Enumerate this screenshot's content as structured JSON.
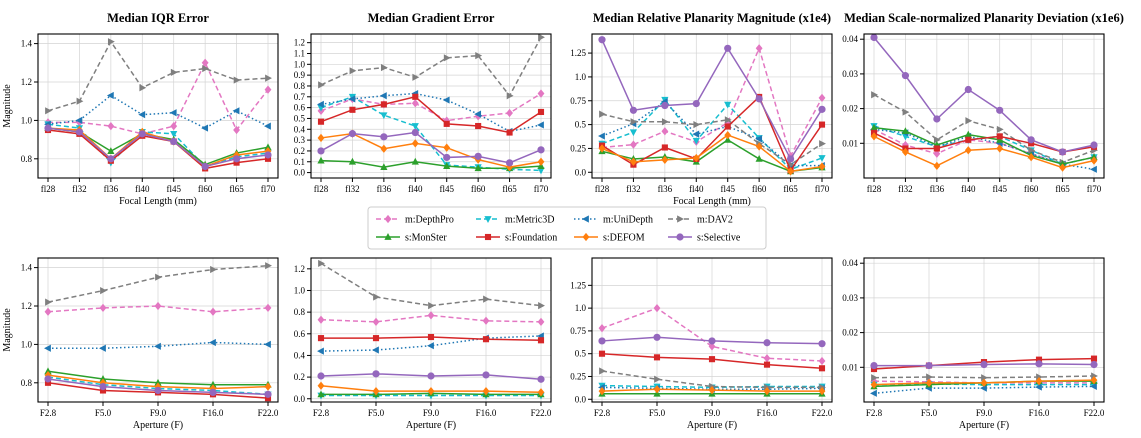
{
  "figure_note": "",
  "chart_data": {
    "type": "line",
    "titles": [
      "Median IQR Error",
      "Median Gradient Error",
      "Median Relative Planarity Magnitude (x1e4)",
      "Median Scale-normalized Planarity Deviation (x1e6)"
    ],
    "ylabel": "Magnitude",
    "legend": {
      "placement": "center",
      "ncol": 4
    },
    "series": [
      {
        "name": "m:DepthPro",
        "color": "#e377c2",
        "marker": "diamond",
        "dash": "dashed"
      },
      {
        "name": "m:Metric3D",
        "color": "#17becf",
        "marker": "triangle-down",
        "dash": "dashed"
      },
      {
        "name": "m:UniDepth",
        "color": "#1f77b4",
        "marker": "triangle-left",
        "dash": "dotted"
      },
      {
        "name": "m:DAV2",
        "color": "#7f7f7f",
        "marker": "triangle-right",
        "dash": "dashed"
      },
      {
        "name": "s:MonSter",
        "color": "#2ca02c",
        "marker": "triangle-up",
        "dash": "solid"
      },
      {
        "name": "s:Foundation",
        "color": "#d62728",
        "marker": "square",
        "dash": "solid"
      },
      {
        "name": "s:DEFOM",
        "color": "#ff7f0e",
        "marker": "diamond",
        "dash": "solid"
      },
      {
        "name": "s:Selective",
        "color": "#9467bd",
        "marker": "circle",
        "dash": "solid"
      }
    ],
    "rows": [
      {
        "xlabel": "Focal Length (mm)",
        "categories": [
          "fl28",
          "fl32",
          "fl36",
          "fl40",
          "fl45",
          "fl60",
          "fl65",
          "fl70"
        ],
        "panels": [
          {
            "ylim": [
              0.7,
              1.45
            ],
            "yticks": [
              0.8,
              1.0,
              1.2,
              1.4
            ],
            "values": [
              [
                0.99,
                0.99,
                0.97,
                0.93,
                0.97,
                1.3,
                0.95,
                1.16
              ],
              [
                0.98,
                0.96,
                0.78,
                0.94,
                0.93,
                0.76,
                0.81,
                0.83
              ],
              [
                0.98,
                1.0,
                1.13,
                1.03,
                1.04,
                0.96,
                1.05,
                0.97
              ],
              [
                1.05,
                1.1,
                1.41,
                1.17,
                1.25,
                1.27,
                1.21,
                1.22
              ],
              [
                0.96,
                0.94,
                0.84,
                0.93,
                0.9,
                0.77,
                0.83,
                0.86
              ],
              [
                0.95,
                0.93,
                0.79,
                0.92,
                0.89,
                0.75,
                0.78,
                0.8
              ],
              [
                0.96,
                0.95,
                0.8,
                0.94,
                0.89,
                0.76,
                0.82,
                0.84
              ],
              [
                0.96,
                0.94,
                0.8,
                0.93,
                0.89,
                0.76,
                0.8,
                0.82
              ]
            ]
          },
          {
            "ylim": [
              -0.05,
              1.28
            ],
            "yticks": [
              0.0,
              0.1,
              0.2,
              0.3,
              0.4,
              0.5,
              0.6,
              0.7,
              0.8,
              0.9,
              1.0,
              1.1,
              1.2
            ],
            "values": [
              [
                0.57,
                0.68,
                0.63,
                0.64,
                0.48,
                0.52,
                0.55,
                0.73
              ],
              [
                0.6,
                0.7,
                0.53,
                0.43,
                0.07,
                0.05,
                0.03,
                0.02
              ],
              [
                0.63,
                0.68,
                0.71,
                0.73,
                0.67,
                0.54,
                0.38,
                0.44
              ],
              [
                0.81,
                0.94,
                0.97,
                0.88,
                1.06,
                1.08,
                0.71,
                1.25
              ],
              [
                0.11,
                0.1,
                0.05,
                0.1,
                0.06,
                0.04,
                0.04,
                0.06
              ],
              [
                0.47,
                0.58,
                0.63,
                0.7,
                0.45,
                0.43,
                0.37,
                0.56
              ],
              [
                0.32,
                0.36,
                0.22,
                0.27,
                0.23,
                0.12,
                0.05,
                0.1
              ],
              [
                0.2,
                0.36,
                0.33,
                0.37,
                0.14,
                0.15,
                0.09,
                0.21
              ]
            ]
          },
          {
            "ylim": [
              -0.06,
              1.45
            ],
            "yticks": [
              0.0,
              0.25,
              0.5,
              0.75,
              1.0,
              1.25
            ],
            "values": [
              [
                0.26,
                0.29,
                0.43,
                0.32,
                0.52,
                1.3,
                0.17,
                0.78
              ],
              [
                0.3,
                0.42,
                0.76,
                0.33,
                0.71,
                0.36,
                0.03,
                0.15
              ],
              [
                0.38,
                0.51,
                0.74,
                0.4,
                0.48,
                0.35,
                0.07,
                0.07
              ],
              [
                0.61,
                0.53,
                0.53,
                0.5,
                0.55,
                0.3,
                0.08,
                0.3
              ],
              [
                0.22,
                0.14,
                0.16,
                0.11,
                0.34,
                0.14,
                0.01,
                0.05
              ],
              [
                0.28,
                0.08,
                0.26,
                0.14,
                0.48,
                0.79,
                0.02,
                0.5
              ],
              [
                0.25,
                0.11,
                0.13,
                0.15,
                0.39,
                0.27,
                0.01,
                0.06
              ],
              [
                1.39,
                0.65,
                0.7,
                0.72,
                1.3,
                0.77,
                0.14,
                0.66
              ]
            ]
          },
          {
            "ylim": [
              0.0,
              0.0415
            ],
            "yticks": [
              0.01,
              0.02,
              0.03,
              0.04
            ],
            "values": [
              [
                0.014,
                0.0095,
                0.007,
                0.011,
                0.01,
                0.007,
                0.004,
                0.006
              ],
              [
                0.015,
                0.012,
                0.009,
                0.011,
                0.012,
                0.008,
                0.004,
                0.006
              ],
              [
                0.014,
                0.013,
                0.009,
                0.012,
                0.01,
                0.007,
                0.004,
                0.0025
              ],
              [
                0.024,
                0.019,
                0.011,
                0.0165,
                0.014,
                0.008,
                0.0045,
                0.008
              ],
              [
                0.0145,
                0.0135,
                0.0095,
                0.0125,
                0.011,
                0.0065,
                0.004,
                0.006
              ],
              [
                0.013,
                0.0085,
                0.0085,
                0.011,
                0.012,
                0.01,
                0.0075,
                0.009
              ],
              [
                0.012,
                0.0075,
                0.0035,
                0.008,
                0.0085,
                0.006,
                0.003,
                0.005
              ],
              [
                0.0405,
                0.0295,
                0.017,
                0.0255,
                0.0195,
                0.011,
                0.0075,
                0.0095
              ]
            ]
          }
        ]
      },
      {
        "xlabel": "Aperture (F)",
        "categories": [
          "F2.8",
          "F5.0",
          "F9.0",
          "F16.0",
          "F22.0"
        ],
        "panels": [
          {
            "ylim": [
              0.7,
              1.45
            ],
            "yticks": [
              0.8,
              1.0,
              1.2,
              1.4
            ],
            "values": [
              [
                1.17,
                1.19,
                1.2,
                1.17,
                1.19
              ],
              [
                0.83,
                0.79,
                0.77,
                0.76,
                0.74
              ],
              [
                0.98,
                0.98,
                0.99,
                1.01,
                1.0
              ],
              [
                1.22,
                1.28,
                1.35,
                1.39,
                1.41
              ],
              [
                0.86,
                0.82,
                0.8,
                0.79,
                0.79
              ],
              [
                0.8,
                0.76,
                0.75,
                0.74,
                0.72
              ],
              [
                0.84,
                0.8,
                0.78,
                0.77,
                0.78
              ],
              [
                0.82,
                0.78,
                0.76,
                0.75,
                0.74
              ]
            ]
          },
          {
            "ylim": [
              -0.03,
              1.3
            ],
            "yticks": [
              0.0,
              0.2,
              0.4,
              0.6,
              0.8,
              1.0,
              1.2
            ],
            "values": [
              [
                0.73,
                0.71,
                0.77,
                0.72,
                0.71
              ],
              [
                0.03,
                0.03,
                0.03,
                0.03,
                0.03
              ],
              [
                0.44,
                0.45,
                0.49,
                0.56,
                0.58
              ],
              [
                1.25,
                0.94,
                0.86,
                0.92,
                0.86
              ],
              [
                0.04,
                0.04,
                0.05,
                0.04,
                0.04
              ],
              [
                0.56,
                0.56,
                0.57,
                0.55,
                0.54
              ],
              [
                0.12,
                0.07,
                0.07,
                0.07,
                0.06
              ],
              [
                0.21,
                0.23,
                0.21,
                0.22,
                0.18
              ]
            ]
          },
          {
            "ylim": [
              -0.03,
              1.55
            ],
            "yticks": [
              0.0,
              0.25,
              0.5,
              0.75,
              1.0,
              1.25
            ],
            "values": [
              [
                0.78,
                1.0,
                0.58,
                0.45,
                0.42
              ],
              [
                0.15,
                0.14,
                0.13,
                0.14,
                0.14
              ],
              [
                0.13,
                0.12,
                0.11,
                0.11,
                0.12
              ],
              [
                0.31,
                0.22,
                0.14,
                0.13,
                0.13
              ],
              [
                0.06,
                0.06,
                0.06,
                0.06,
                0.06
              ],
              [
                0.5,
                0.46,
                0.44,
                0.38,
                0.34
              ],
              [
                0.09,
                0.11,
                0.1,
                0.09,
                0.09
              ],
              [
                0.64,
                0.68,
                0.64,
                0.62,
                0.61
              ]
            ]
          },
          {
            "ylim": [
              0.0,
              0.0415
            ],
            "yticks": [
              0.01,
              0.02,
              0.03,
              0.04
            ],
            "values": [
              [
                0.006,
                0.0058,
                0.0055,
                0.0055,
                0.0055
              ],
              [
                0.005,
                0.0052,
                0.005,
                0.005,
                0.005
              ],
              [
                0.0025,
                0.004,
                0.004,
                0.0043,
                0.0045
              ],
              [
                0.007,
                0.0072,
                0.007,
                0.0072,
                0.0075
              ],
              [
                0.0045,
                0.005,
                0.0055,
                0.006,
                0.006
              ],
              [
                0.0095,
                0.0105,
                0.0115,
                0.0122,
                0.0125
              ],
              [
                0.005,
                0.0055,
                0.0055,
                0.006,
                0.0063
              ],
              [
                0.0105,
                0.0105,
                0.0108,
                0.011,
                0.0108
              ]
            ]
          }
        ]
      }
    ]
  }
}
